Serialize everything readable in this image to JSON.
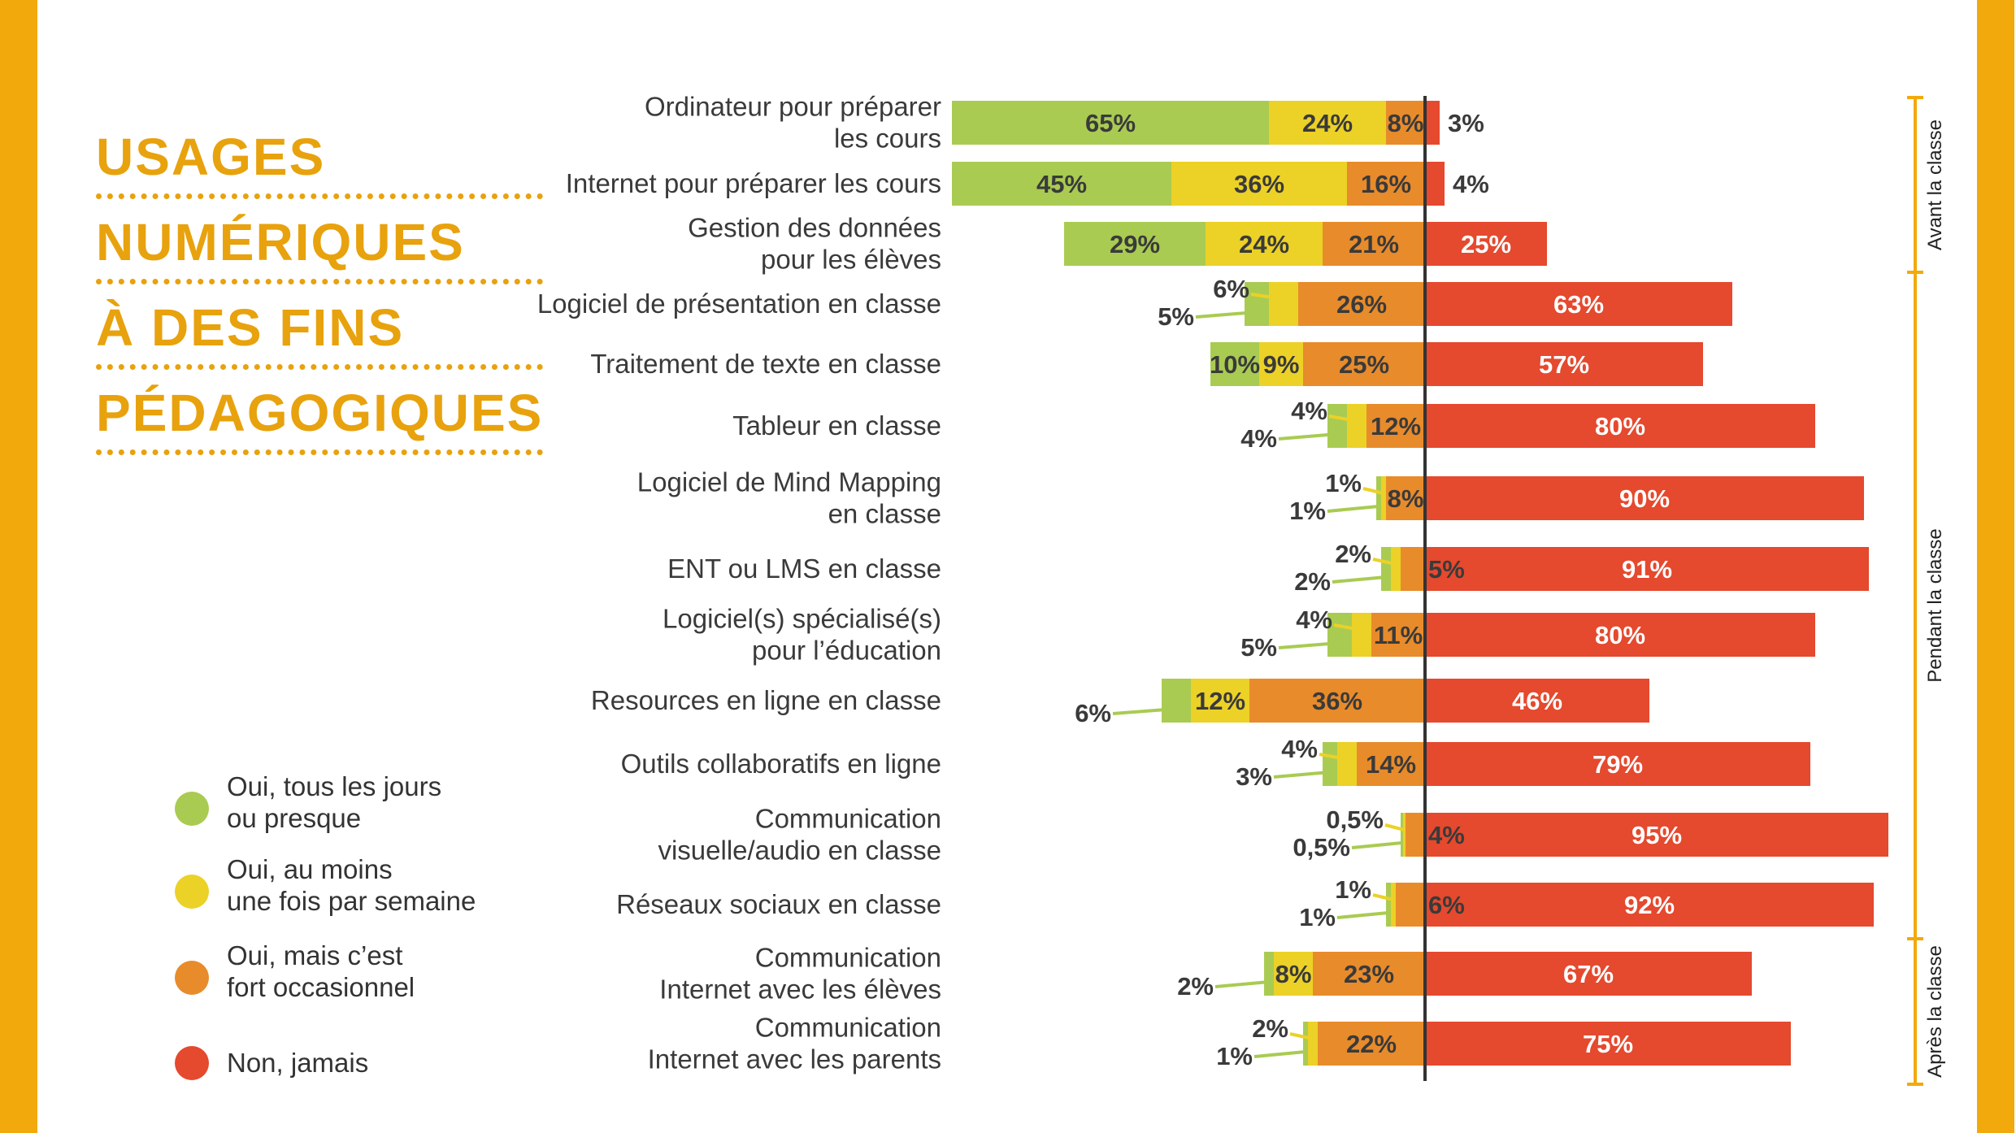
{
  "colors": {
    "frame": "#F2A90C",
    "title": "#E8A20D",
    "daily": "#A9CB52",
    "weekly": "#ECD127",
    "occasional": "#E88B2B",
    "never": "#E5492E",
    "text": "#3a3a3a"
  },
  "title": {
    "lines": [
      "USAGES",
      "NUMÉRIQUES",
      "À DES FINS",
      "PÉDAGOGIQUES"
    ]
  },
  "legend": {
    "items": [
      {
        "key": "daily",
        "lines": [
          "Oui, tous les jours",
          "ou presque"
        ]
      },
      {
        "key": "weekly",
        "lines": [
          "Oui, au moins",
          "une fois par semaine"
        ]
      },
      {
        "key": "occasional",
        "lines": [
          "Oui, mais c’est",
          "fort occasionnel"
        ]
      },
      {
        "key": "never",
        "lines": [
          "Non, jamais"
        ]
      }
    ]
  },
  "chart_data": {
    "type": "bar",
    "orientation": "horizontal-diverging",
    "unit": "%",
    "series": [
      "Oui, tous les jours ou presque",
      "Oui, au moins une fois par semaine",
      "Oui, mais c’est fort occasionnel",
      "Non, jamais"
    ],
    "rows": [
      {
        "label": [
          "Ordinateur pour préparer",
          "les cours"
        ],
        "values": [
          65,
          24,
          8,
          3
        ],
        "labels": [
          "65%",
          "24%",
          "8%",
          "3%"
        ]
      },
      {
        "label": [
          "Internet pour préparer les cours"
        ],
        "values": [
          45,
          36,
          16,
          4
        ],
        "labels": [
          "45%",
          "36%",
          "16%",
          "4%"
        ]
      },
      {
        "label": [
          "Gestion des données",
          "pour les élèves"
        ],
        "values": [
          29,
          24,
          21,
          25
        ],
        "labels": [
          "29%",
          "24%",
          "21%",
          "25%"
        ]
      },
      {
        "label": [
          "Logiciel de présentation en classe"
        ],
        "values": [
          5,
          6,
          26,
          63
        ],
        "labels": [
          "5%",
          "6%",
          "26%",
          "63%"
        ]
      },
      {
        "label": [
          "Traitement de texte en classe"
        ],
        "values": [
          10,
          9,
          25,
          57
        ],
        "labels": [
          "10%",
          "9%",
          "25%",
          "57%"
        ]
      },
      {
        "label": [
          "Tableur en classe"
        ],
        "values": [
          4,
          4,
          12,
          80
        ],
        "labels": [
          "4%",
          "4%",
          "12%",
          "80%"
        ]
      },
      {
        "label": [
          "Logiciel de Mind Mapping",
          "en classe"
        ],
        "values": [
          1,
          1,
          8,
          90
        ],
        "labels": [
          "1%",
          "1%",
          "8%",
          "90%"
        ]
      },
      {
        "label": [
          "ENT ou LMS en classe"
        ],
        "values": [
          2,
          2,
          5,
          91
        ],
        "labels": [
          "2%",
          "2%",
          "5%",
          "91%"
        ]
      },
      {
        "label": [
          "Logiciel(s) spécialisé(s)",
          "pour l’éducation"
        ],
        "values": [
          5,
          4,
          11,
          80
        ],
        "labels": [
          "5%",
          "4%",
          "11%",
          "80%"
        ]
      },
      {
        "label": [
          "Resources en ligne en classe"
        ],
        "values": [
          6,
          12,
          36,
          46
        ],
        "labels": [
          "6%",
          "12%",
          "36%",
          "46%"
        ]
      },
      {
        "label": [
          "Outils collaboratifs en ligne"
        ],
        "values": [
          3,
          4,
          14,
          79
        ],
        "labels": [
          "3%",
          "4%",
          "14%",
          "79%"
        ]
      },
      {
        "label": [
          "Communication",
          "visuelle/audio en classe"
        ],
        "values": [
          0.5,
          0.5,
          4,
          95
        ],
        "labels": [
          "0,5%",
          "0,5%",
          "4%",
          "95%"
        ]
      },
      {
        "label": [
          "Réseaux sociaux en classe"
        ],
        "values": [
          1,
          1,
          6,
          92
        ],
        "labels": [
          "1%",
          "1%",
          "6%",
          "92%"
        ]
      },
      {
        "label": [
          "Communication",
          "Internet avec les élèves"
        ],
        "values": [
          2,
          8,
          23,
          67
        ],
        "labels": [
          "2%",
          "8%",
          "23%",
          "67%"
        ]
      },
      {
        "label": [
          "Communication",
          "Internet avec les parents"
        ],
        "values": [
          1,
          2,
          22,
          75
        ],
        "labels": [
          "1%",
          "2%",
          "22%",
          "75%"
        ]
      }
    ],
    "groups": [
      {
        "label": "Avant la classe",
        "from_row": 0,
        "to_row": 2
      },
      {
        "label": "Pendant la classe",
        "from_row": 3,
        "to_row": 12
      },
      {
        "label": "Après la classe",
        "from_row": 13,
        "to_row": 14
      }
    ]
  }
}
